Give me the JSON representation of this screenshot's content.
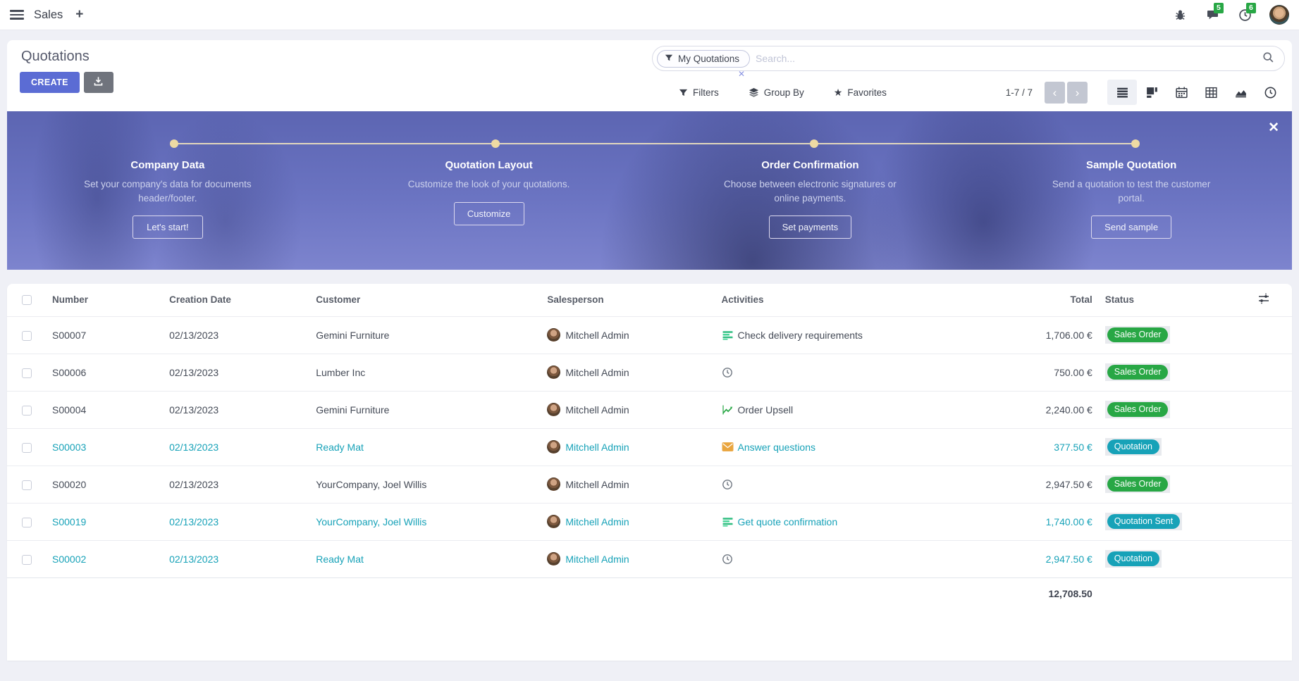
{
  "navbar": {
    "app_name": "Sales",
    "messages_badge": "5",
    "activities_badge": "6"
  },
  "control_panel": {
    "title": "Quotations",
    "create_label": "CREATE",
    "search": {
      "facet": "My Quotations",
      "placeholder": "Search..."
    },
    "filters_label": "Filters",
    "group_by_label": "Group By",
    "favorites_label": "Favorites",
    "pager": "1-7 / 7"
  },
  "banner": {
    "steps": [
      {
        "title": "Company Data",
        "desc": "Set your company's data for documents header/footer.",
        "button": "Let's start!"
      },
      {
        "title": "Quotation Layout",
        "desc": "Customize the look of your quotations.",
        "button": "Customize"
      },
      {
        "title": "Order Confirmation",
        "desc": "Choose between electronic signatures or online payments.",
        "button": "Set payments"
      },
      {
        "title": "Sample Quotation",
        "desc": "Send a quotation to test the customer portal.",
        "button": "Send sample"
      }
    ]
  },
  "table": {
    "columns": {
      "number": "Number",
      "date": "Creation Date",
      "customer": "Customer",
      "salesperson": "Salesperson",
      "activities": "Activities",
      "total": "Total",
      "status": "Status"
    },
    "rows": [
      {
        "number": "S00007",
        "date": "02/13/2023",
        "customer": "Gemini Furniture",
        "salesperson": "Mitchell Admin",
        "activity": "Check delivery requirements",
        "activity_icon": "list",
        "total": "1,706.00 €",
        "status": "Sales Order",
        "status_color": "green",
        "highlight": false
      },
      {
        "number": "S00006",
        "date": "02/13/2023",
        "customer": "Lumber Inc",
        "salesperson": "Mitchell Admin",
        "activity": "",
        "activity_icon": "clock",
        "total": "750.00 €",
        "status": "Sales Order",
        "status_color": "green",
        "highlight": false
      },
      {
        "number": "S00004",
        "date": "02/13/2023",
        "customer": "Gemini Furniture",
        "salesperson": "Mitchell Admin",
        "activity": "Order Upsell",
        "activity_icon": "chart",
        "total": "2,240.00 €",
        "status": "Sales Order",
        "status_color": "green",
        "highlight": false
      },
      {
        "number": "S00003",
        "date": "02/13/2023",
        "customer": "Ready Mat",
        "salesperson": "Mitchell Admin",
        "activity": "Answer questions",
        "activity_icon": "envelope",
        "total": "377.50 €",
        "status": "Quotation",
        "status_color": "teal",
        "highlight": true
      },
      {
        "number": "S00020",
        "date": "02/13/2023",
        "customer": "YourCompany, Joel Willis",
        "salesperson": "Mitchell Admin",
        "activity": "",
        "activity_icon": "clock",
        "total": "2,947.50 €",
        "status": "Sales Order",
        "status_color": "green",
        "highlight": false
      },
      {
        "number": "S00019",
        "date": "02/13/2023",
        "customer": "YourCompany, Joel Willis",
        "salesperson": "Mitchell Admin",
        "activity": "Get quote confirmation",
        "activity_icon": "list",
        "total": "1,740.00 €",
        "status": "Quotation Sent",
        "status_color": "teal",
        "highlight": true
      },
      {
        "number": "S00002",
        "date": "02/13/2023",
        "customer": "Ready Mat",
        "salesperson": "Mitchell Admin",
        "activity": "",
        "activity_icon": "clock",
        "total": "2,947.50 €",
        "status": "Quotation",
        "status_color": "teal",
        "highlight": true
      }
    ],
    "footer_total": "12,708.50"
  },
  "colors": {
    "accent": "#5b6cd4",
    "teal": "#17a2b8",
    "green": "#28a745",
    "banner_base": "#6b74c2"
  }
}
